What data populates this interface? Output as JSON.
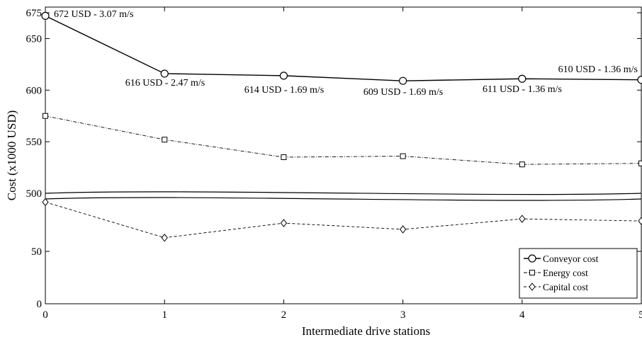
{
  "chart_data": {
    "type": "line",
    "xlabel": "Intermediate drive stations",
    "ylabel": "Cost (x1000 USD)",
    "x": [
      0,
      1,
      2,
      3,
      4,
      5
    ],
    "xlim": [
      0,
      5
    ],
    "xticks": [
      "0",
      "1",
      "2",
      "3",
      "4",
      "5"
    ],
    "axis_break": true,
    "yticks": [
      "0",
      "50",
      "500",
      "550",
      "600",
      "650",
      "675"
    ],
    "lower_segment": {
      "ylim": [
        0,
        100
      ],
      "ticks": [
        "0",
        "50"
      ]
    },
    "upper_segment": {
      "ylim": [
        500,
        675
      ],
      "ticks": [
        "500",
        "550",
        "600",
        "650",
        "675"
      ]
    },
    "series": [
      {
        "name": "Conveyor cost",
        "marker": "circle",
        "line": "solid",
        "color": "#000000",
        "values": [
          672,
          616,
          614,
          609,
          611,
          610
        ]
      },
      {
        "name": "Energy cost",
        "marker": "square",
        "line": "dashdot",
        "color": "#000000",
        "values": [
          575,
          552,
          535,
          536,
          528,
          529
        ]
      },
      {
        "name": "Capital cost",
        "marker": "diamond",
        "line": "dashed",
        "color": "#000000",
        "values": [
          97,
          63,
          77,
          71,
          81,
          79
        ]
      }
    ],
    "annotations": [
      "672 USD - 3.07 m/s",
      "616 USD - 2.47 m/s",
      "614 USD - 1.69 m/s",
      "609 USD - 1.69 m/s",
      "611 USD - 1.36 m/s",
      "610 USD - 1.36 m/s"
    ],
    "legend": {
      "position": "bottom-right"
    },
    "grid": false
  }
}
